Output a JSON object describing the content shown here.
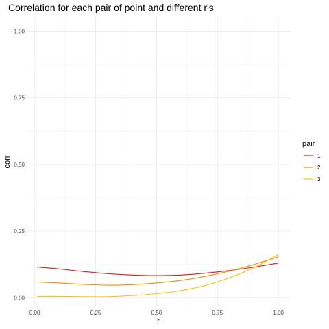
{
  "chart_data": {
    "type": "line",
    "title": "Correlation for each pair of point and different r's",
    "xlabel": "r",
    "ylabel": "corr",
    "xlim": [
      -0.03,
      1.05
    ],
    "ylim": [
      -0.03,
      1.05
    ],
    "x_ticks": [
      "0.00",
      "0.25",
      "0.50",
      "0.75",
      "1.00"
    ],
    "y_ticks": [
      "0.00",
      "0.25",
      "0.50",
      "0.75",
      "1.00"
    ],
    "grid": true,
    "legend": {
      "title": "pair",
      "position": "right"
    },
    "x": [
      0.01,
      0.1,
      0.2,
      0.3,
      0.4,
      0.5,
      0.6,
      0.7,
      0.8,
      0.9,
      1.0
    ],
    "series": [
      {
        "name": "1",
        "color": "#e41a1c",
        "values": [
          0.115,
          0.108,
          0.098,
          0.09,
          0.085,
          0.083,
          0.085,
          0.092,
          0.102,
          0.115,
          0.13
        ]
      },
      {
        "name": "2",
        "color": "#f08c00",
        "values": [
          0.059,
          0.055,
          0.05,
          0.047,
          0.049,
          0.055,
          0.065,
          0.08,
          0.1,
          0.125,
          0.153
        ]
      },
      {
        "name": "3",
        "color": "#ffc000",
        "values": [
          0.005,
          0.005,
          0.004,
          0.004,
          0.008,
          0.015,
          0.027,
          0.046,
          0.075,
          0.113,
          0.162
        ]
      }
    ]
  }
}
